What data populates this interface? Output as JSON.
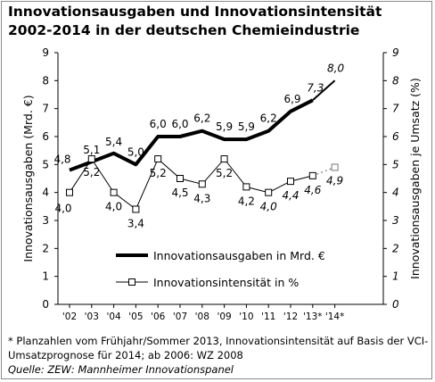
{
  "title": "Innovationsausgaben und Innovationsintensität 2002-2014 in der deutschen Chemieindustrie",
  "footnote": {
    "note": "* Planzahlen vom Frühjahr/Sommer 2013, Innovationsintensität auf Basis der VCI-Umsatzprognose für 2014; ab 2006: WZ 2008",
    "source": "Quelle: ZEW: Mannheimer Innovationspanel"
  },
  "chart_data": {
    "type": "line",
    "categories": [
      "'02",
      "'03",
      "'04",
      "'05",
      "'06",
      "'07",
      "'08",
      "'09",
      "'10",
      "'11",
      "'12",
      "'13*",
      "'14*"
    ],
    "ylabel_left": "Innovationsausgaben (Mrd. €)",
    "ylabel_right": "Innovationsausgaben je Umsatz (%)",
    "ylim": [
      0,
      9
    ],
    "yticks": [
      "0",
      "1",
      "2",
      "3",
      "4",
      "5",
      "6",
      "7",
      "8",
      "9"
    ],
    "grid": false,
    "legend_position": "lower-middle",
    "series": [
      {
        "name": "Innovationsausgaben in Mrd. €",
        "axis": "left",
        "style": "thick-solid",
        "color": "#000000",
        "values": [
          4.8,
          5.1,
          5.4,
          5.0,
          6.0,
          6.0,
          6.2,
          5.9,
          5.9,
          6.2,
          6.9,
          7.3,
          8.0
        ],
        "labels": [
          "4,8",
          "5,1",
          "5,4",
          "5,0",
          "6,0",
          "6,0",
          "6,2",
          "5,9",
          "5,9",
          "6,2",
          "6,9",
          "7,3",
          "8,0"
        ],
        "dashed_from_index": 11
      },
      {
        "name": "Innovationsintensität in %",
        "axis": "right",
        "style": "thin-square-markers",
        "color": "#000000",
        "values": [
          4.0,
          5.2,
          4.0,
          3.4,
          5.2,
          4.5,
          4.3,
          5.2,
          4.2,
          4.0,
          4.4,
          4.6,
          4.9
        ],
        "labels": [
          "4,0",
          "5,2",
          "4,0",
          "3,4",
          "5,2",
          "4,5",
          "4,3",
          "5,2",
          "4,2",
          "4,0",
          "4,4",
          "4,6",
          "4,9"
        ],
        "dashed_from_index": 11
      }
    ]
  }
}
